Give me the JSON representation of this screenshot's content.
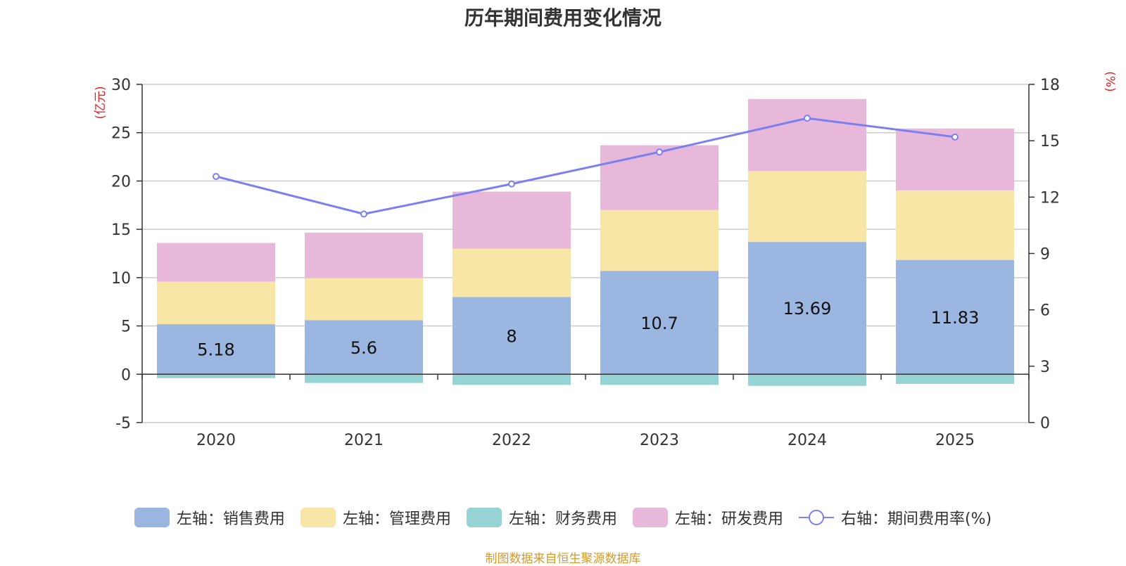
{
  "chart_data": {
    "type": "bar",
    "title": "历年期间费用变化情况",
    "categories": [
      "2020",
      "2021",
      "2022",
      "2023",
      "2024",
      "2025"
    ],
    "left_axis_label": "(亿元)",
    "right_axis_label": "(%)",
    "ylim_left": [
      -5,
      30
    ],
    "left_ticks": [
      -5,
      0,
      5,
      10,
      15,
      20,
      25,
      30
    ],
    "ylim_right": [
      0,
      18
    ],
    "right_ticks": [
      0,
      3,
      6,
      9,
      12,
      15,
      18
    ],
    "series": [
      {
        "name": "左轴：销售费用",
        "axis": "left",
        "type": "bar",
        "color": "#9bb6e0",
        "values": [
          5.18,
          5.6,
          8,
          10.7,
          13.69,
          11.83
        ],
        "labels": [
          "5.18",
          "5.6",
          "8",
          "10.7",
          "13.69",
          "11.83"
        ]
      },
      {
        "name": "左轴：管理费用",
        "axis": "left",
        "type": "bar",
        "color": "#f8e6a6",
        "values": [
          4.4,
          4.35,
          5.0,
          6.3,
          7.35,
          7.2
        ]
      },
      {
        "name": "左轴：财务费用",
        "axis": "left",
        "type": "bar",
        "color": "#96d3d5",
        "values": [
          -0.4,
          -0.9,
          -1.1,
          -1.1,
          -1.2,
          -1.0
        ]
      },
      {
        "name": "左轴：研发费用",
        "axis": "left",
        "type": "bar",
        "color": "#e7b8d9",
        "values": [
          4.0,
          4.7,
          5.9,
          6.7,
          7.45,
          6.4
        ]
      },
      {
        "name": "右轴：期间费用率(%)",
        "axis": "right",
        "type": "line",
        "color": "#7b7ff0",
        "values": [
          13.1,
          11.1,
          12.7,
          14.4,
          16.2,
          15.2
        ]
      }
    ]
  },
  "source": "制图数据来自恒生聚源数据库"
}
